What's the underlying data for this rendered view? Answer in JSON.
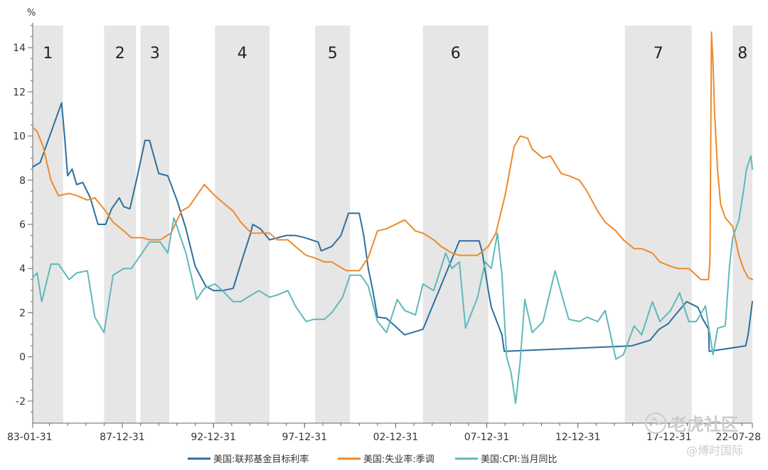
{
  "chart_data": {
    "type": "line",
    "ylabel": "%",
    "ylim": [
      -3,
      15
    ],
    "y_ticks": [
      -2,
      0,
      2,
      4,
      6,
      8,
      10,
      12,
      14
    ],
    "y_tick_labels": [
      "-2",
      "0",
      "2",
      "4",
      "6",
      "8",
      "10",
      "12",
      "14"
    ],
    "x_range": [
      "1983-01-31",
      "2022-07-28"
    ],
    "x_ticks": [
      "1983-01-31",
      "1987-12-31",
      "1992-12-31",
      "1997-12-31",
      "2002-12-31",
      "2007-12-31",
      "2012-12-31",
      "2017-12-31",
      "2022-07-28"
    ],
    "x_tick_labels": [
      "83-01-31",
      "87-12-31",
      "92-12-31",
      "97-12-31",
      "02-12-31",
      "07-12-31",
      "12-12-31",
      "17-12-31",
      "22-07-28"
    ],
    "shaded_periods": [
      {
        "label": "1",
        "start": "1983-01-31",
        "end": "1984-09-30"
      },
      {
        "label": "2",
        "start": "1986-12-31",
        "end": "1988-09-30"
      },
      {
        "label": "3",
        "start": "1988-12-31",
        "end": "1990-07-31"
      },
      {
        "label": "4",
        "start": "1993-01-31",
        "end": "1996-01-31"
      },
      {
        "label": "5",
        "start": "1998-07-31",
        "end": "2000-06-30"
      },
      {
        "label": "6",
        "start": "2004-06-30",
        "end": "2008-01-31"
      },
      {
        "label": "7",
        "start": "2015-07-31",
        "end": "2019-03-31"
      },
      {
        "label": "8",
        "start": "2021-06-30",
        "end": "2022-07-28"
      }
    ],
    "grid": false,
    "legend_position": "bottom",
    "series": [
      {
        "name": "美国:联邦基金目标利率",
        "color": "#2e6f9e",
        "x": [
          "1983-01-31",
          "1983-06-30",
          "1984-08-31",
          "1984-10-31",
          "1984-12-31",
          "1985-03-31",
          "1985-06-30",
          "1985-10-31",
          "1986-03-31",
          "1986-08-31",
          "1987-01-31",
          "1987-05-31",
          "1987-10-31",
          "1988-01-31",
          "1988-05-31",
          "1988-10-31",
          "1989-03-31",
          "1989-06-30",
          "1989-12-31",
          "1990-06-30",
          "1990-12-31",
          "1991-06-30",
          "1991-12-31",
          "1992-07-31",
          "1992-12-31",
          "1993-06-30",
          "1994-01-31",
          "1994-06-30",
          "1994-12-31",
          "1995-02-28",
          "1995-07-31",
          "1996-01-31",
          "1996-12-31",
          "1997-06-30",
          "1997-12-31",
          "1998-09-30",
          "1998-11-30",
          "1999-06-30",
          "1999-12-31",
          "2000-05-31",
          "2000-12-31",
          "2001-03-31",
          "2001-06-30",
          "2001-09-30",
          "2001-12-31",
          "2002-06-30",
          "2003-06-30",
          "2004-06-30",
          "2005-06-30",
          "2006-06-30",
          "2007-07-31",
          "2007-09-30",
          "2008-01-31",
          "2008-03-31",
          "2008-10-31",
          "2008-12-16",
          "2015-12-16",
          "2016-12-14",
          "2017-06-14",
          "2017-12-13",
          "2018-06-13",
          "2018-12-19",
          "2019-07-31",
          "2019-09-18",
          "2019-10-30",
          "2020-03-03",
          "2020-03-15",
          "2022-03-16",
          "2022-05-04",
          "2022-06-15",
          "2022-07-28"
        ],
        "values": [
          8.6,
          8.8,
          11.5,
          10.0,
          8.2,
          8.5,
          7.8,
          7.9,
          7.2,
          6.0,
          6.0,
          6.7,
          7.2,
          6.8,
          6.7,
          8.2,
          9.8,
          9.8,
          8.3,
          8.2,
          7.1,
          5.8,
          4.1,
          3.2,
          3.0,
          3.0,
          3.1,
          4.2,
          5.5,
          6.0,
          5.8,
          5.3,
          5.5,
          5.5,
          5.4,
          5.2,
          4.8,
          5.0,
          5.5,
          6.5,
          6.5,
          5.5,
          4.0,
          3.0,
          1.8,
          1.75,
          1.0,
          1.25,
          3.25,
          5.25,
          5.25,
          4.75,
          3.0,
          2.25,
          1.0,
          0.25,
          0.5,
          0.75,
          1.25,
          1.5,
          2.0,
          2.5,
          2.25,
          2.0,
          1.75,
          1.25,
          0.25,
          0.5,
          1.0,
          1.75,
          2.5
        ]
      },
      {
        "name": "美国:失业率:季调",
        "color": "#ee8a2b",
        "x": [
          "1983-01-31",
          "1983-04-30",
          "1983-08-31",
          "1984-01-31",
          "1984-06-30",
          "1985-01-31",
          "1985-06-30",
          "1986-01-31",
          "1986-06-30",
          "1987-01-31",
          "1987-06-30",
          "1988-01-31",
          "1988-06-30",
          "1989-01-31",
          "1989-06-30",
          "1990-01-31",
          "1990-08-31",
          "1991-03-31",
          "1991-08-31",
          "1992-01-31",
          "1992-06-30",
          "1993-01-31",
          "1993-06-30",
          "1994-01-31",
          "1994-06-30",
          "1995-01-31",
          "1996-01-31",
          "1996-06-30",
          "1997-01-31",
          "1997-06-30",
          "1998-01-31",
          "1998-06-30",
          "1999-01-31",
          "1999-06-30",
          "2000-01-31",
          "2000-04-30",
          "2000-12-31",
          "2001-06-30",
          "2001-12-31",
          "2002-06-30",
          "2003-06-30",
          "2004-01-31",
          "2004-06-30",
          "2005-01-31",
          "2005-06-30",
          "2006-01-31",
          "2006-06-30",
          "2007-01-31",
          "2007-06-30",
          "2008-01-31",
          "2008-06-30",
          "2008-12-31",
          "2009-06-30",
          "2009-10-31",
          "2010-03-31",
          "2010-06-30",
          "2011-01-31",
          "2011-06-30",
          "2012-01-31",
          "2012-06-30",
          "2013-01-31",
          "2013-06-30",
          "2014-01-31",
          "2014-06-30",
          "2015-01-31",
          "2015-06-30",
          "2016-01-31",
          "2016-06-30",
          "2017-01-31",
          "2017-06-30",
          "2018-01-31",
          "2018-06-30",
          "2019-01-31",
          "2019-06-30",
          "2019-09-30",
          "2020-01-31",
          "2020-02-29",
          "2020-03-31",
          "2020-04-30",
          "2020-05-31",
          "2020-06-30",
          "2020-08-31",
          "2020-10-31",
          "2021-01-31",
          "2021-06-30",
          "2021-10-31",
          "2022-01-31",
          "2022-04-30",
          "2022-07-28"
        ],
        "values": [
          10.4,
          10.2,
          9.5,
          8.0,
          7.3,
          7.4,
          7.3,
          7.1,
          7.2,
          6.6,
          6.1,
          5.7,
          5.4,
          5.4,
          5.3,
          5.3,
          5.6,
          6.6,
          6.8,
          7.3,
          7.8,
          7.3,
          7.0,
          6.6,
          6.1,
          5.6,
          5.6,
          5.3,
          5.3,
          5.0,
          4.6,
          4.5,
          4.3,
          4.3,
          4.0,
          3.9,
          3.9,
          4.5,
          5.7,
          5.8,
          6.2,
          5.7,
          5.6,
          5.3,
          5.0,
          4.7,
          4.6,
          4.6,
          4.6,
          5.0,
          5.6,
          7.3,
          9.5,
          10.0,
          9.9,
          9.4,
          9.0,
          9.1,
          8.3,
          8.2,
          8.0,
          7.5,
          6.6,
          6.1,
          5.7,
          5.3,
          4.9,
          4.9,
          4.7,
          4.3,
          4.1,
          4.0,
          4.0,
          3.7,
          3.5,
          3.5,
          3.5,
          4.4,
          14.7,
          13.3,
          11.1,
          8.4,
          6.9,
          6.3,
          5.9,
          4.6,
          4.0,
          3.6,
          3.5
        ]
      },
      {
        "name": "美国:CPI:当月同比",
        "color": "#5fb8bb",
        "x": [
          "1983-01-31",
          "1983-04-30",
          "1983-07-31",
          "1984-01-31",
          "1984-06-30",
          "1985-01-31",
          "1985-06-30",
          "1986-01-31",
          "1986-06-30",
          "1986-12-31",
          "1987-06-30",
          "1988-01-31",
          "1988-06-30",
          "1989-01-31",
          "1989-06-30",
          "1990-01-31",
          "1990-06-30",
          "1990-10-31",
          "1991-06-30",
          "1992-01-31",
          "1992-06-30",
          "1993-01-31",
          "1993-06-30",
          "1994-01-31",
          "1994-06-30",
          "1995-01-31",
          "1995-06-30",
          "1996-01-31",
          "1996-06-30",
          "1997-01-31",
          "1997-06-30",
          "1998-01-31",
          "1998-06-30",
          "1999-01-31",
          "1999-06-30",
          "2000-01-31",
          "2000-06-30",
          "2001-01-31",
          "2001-06-30",
          "2001-12-31",
          "2002-06-30",
          "2003-01-31",
          "2003-06-30",
          "2004-01-31",
          "2004-06-30",
          "2005-01-31",
          "2005-09-30",
          "2006-01-31",
          "2006-06-30",
          "2006-10-31",
          "2007-06-30",
          "2007-11-30",
          "2008-03-31",
          "2008-07-31",
          "2008-10-31",
          "2009-01-31",
          "2009-04-30",
          "2009-07-31",
          "2009-10-31",
          "2010-01-31",
          "2010-06-30",
          "2011-01-31",
          "2011-09-30",
          "2012-01-31",
          "2012-06-30",
          "2013-01-31",
          "2013-06-30",
          "2014-01-31",
          "2014-06-30",
          "2015-01-31",
          "2015-06-30",
          "2016-01-31",
          "2016-06-30",
          "2017-01-31",
          "2017-06-30",
          "2018-01-31",
          "2018-07-31",
          "2019-01-31",
          "2019-06-30",
          "2019-12-31",
          "2020-05-31",
          "2020-08-31",
          "2021-01-31",
          "2021-04-30",
          "2021-06-30",
          "2021-10-31",
          "2022-01-31",
          "2022-03-31",
          "2022-06-30",
          "2022-07-28"
        ],
        "values": [
          3.6,
          3.8,
          2.5,
          4.2,
          4.2,
          3.5,
          3.8,
          3.9,
          1.8,
          1.1,
          3.7,
          4.0,
          4.0,
          4.7,
          5.2,
          5.2,
          4.7,
          6.3,
          4.7,
          2.6,
          3.1,
          3.3,
          3.0,
          2.5,
          2.5,
          2.8,
          3.0,
          2.7,
          2.8,
          3.0,
          2.3,
          1.6,
          1.7,
          1.7,
          2.0,
          2.7,
          3.7,
          3.7,
          3.2,
          1.6,
          1.1,
          2.6,
          2.1,
          1.9,
          3.3,
          3.0,
          4.7,
          4.0,
          4.3,
          1.3,
          2.7,
          4.3,
          4.0,
          5.6,
          3.7,
          0.0,
          -0.7,
          -2.1,
          -0.2,
          2.6,
          1.1,
          1.6,
          3.9,
          2.9,
          1.7,
          1.6,
          1.8,
          1.6,
          2.1,
          -0.1,
          0.1,
          1.4,
          1.0,
          2.5,
          1.6,
          2.1,
          2.9,
          1.6,
          1.6,
          2.3,
          0.1,
          1.3,
          1.4,
          4.2,
          5.4,
          6.2,
          7.5,
          8.5,
          9.1,
          8.5
        ]
      }
    ]
  },
  "watermark": {
    "brand_text": "老虎社区",
    "author_text": "@博时国际",
    "icon": "tiger-logo-icon"
  }
}
